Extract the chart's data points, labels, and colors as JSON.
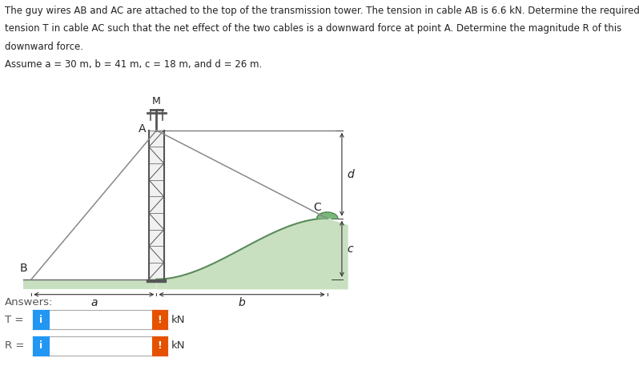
{
  "title_lines": [
    "The guy wires AB and AC are attached to the top of the transmission tower. The tension in cable AB is 6.6 kN. Determine the required",
    "tension T in cable AC such that the net effect of the two cables is a downward force at point A. Determine the magnitude R of this",
    "downward force.",
    "Assume a = 30 m, b = 41 m, c = 18 m, and d = 26 m."
  ],
  "bg_color": "#ffffff",
  "tower_color": "#555555",
  "cable_color": "#888888",
  "ground_fill_color": "#c8e0c0",
  "ground_line_color": "#5a8a5a",
  "dim_line_color": "#333333",
  "label_color": "#222222",
  "answers_label": "Answers:",
  "T_label": "T =",
  "R_label": "R =",
  "kN_label": "kN",
  "blue_btn_color": "#2196F3",
  "orange_btn_color": "#E65100",
  "input_border_color": "#aaaaaa",
  "input_bg_color": "#ffffff",
  "btn_text": "i",
  "exc_text": "!",
  "font_size_title": 8.5,
  "font_size_labels": 9.5,
  "font_size_answers": 9.5,
  "a_val": 30,
  "b_val": 41,
  "c_val": 18,
  "d_val": 26
}
